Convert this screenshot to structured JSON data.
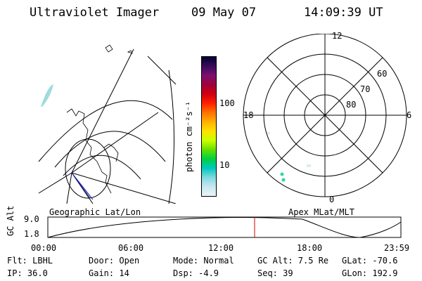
{
  "header": {
    "instrument": "Ultraviolet Imager",
    "date": "09 May 07",
    "time": "14:09:39 UT"
  },
  "colorbar": {
    "unit_label": "photon cm⁻²s⁻¹",
    "ticks": [
      "100",
      "10"
    ],
    "colors": [
      "#000033",
      "#3a0a5a",
      "#7a1070",
      "#a0003a",
      "#d00010",
      "#ff2000",
      "#ff7000",
      "#ffb000",
      "#ffe000",
      "#ccff00",
      "#66e000",
      "#00d040",
      "#00c8c0",
      "#80d8e0",
      "#c8e8f0",
      "#eaf4f8"
    ]
  },
  "geo_map": {
    "label": "Geographic Lat/Lon"
  },
  "polar_plot": {
    "label": "Apex MLat/MLT",
    "mlt_labels": {
      "top": "12",
      "left": "18",
      "right": "6",
      "bottom": "0"
    },
    "lat_labels": [
      "60",
      "70",
      "80"
    ]
  },
  "altitude_plot": {
    "ylabel": "GC Alt",
    "yticks": [
      "9.0",
      "1.8"
    ],
    "xticks": [
      "00:00",
      "06:00",
      "12:00",
      "18:00",
      "23:59"
    ],
    "current_time_marker": "14:09"
  },
  "footer": {
    "filter": "Flt: LBHL",
    "ip": "IP: 36.0",
    "door": "Door: Open",
    "gain": "Gain: 14",
    "mode": "Mode: Normal",
    "dsp": "Dsp:   -4.9",
    "gc_alt": "GC Alt: 7.5 Re",
    "seq": "Seq: 39",
    "glat": "GLat: -70.6",
    "glon": "GLon: 192.9"
  }
}
